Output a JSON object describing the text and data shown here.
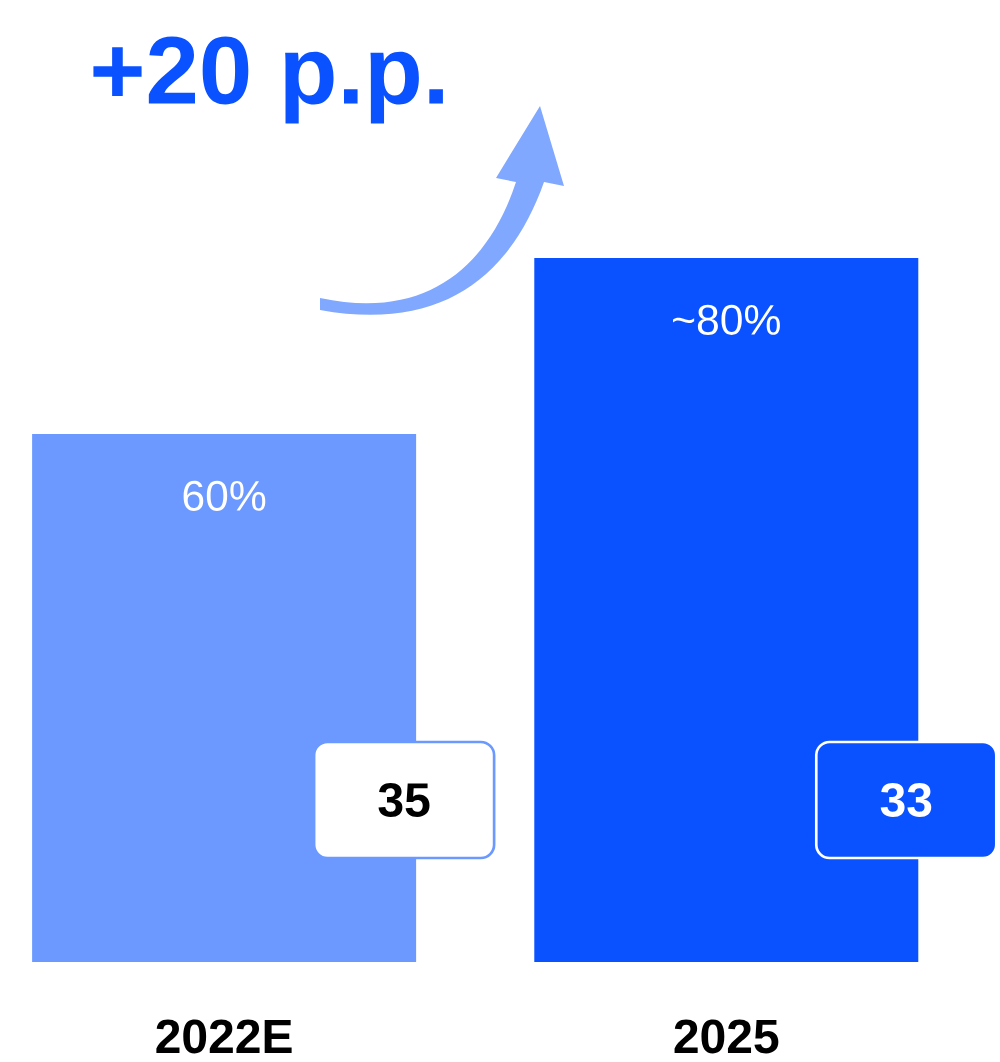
{
  "chart_data": {
    "type": "bar",
    "title": "+20 p.p.",
    "categories": [
      "2022E",
      "2025"
    ],
    "values": [
      60,
      80
    ],
    "colors": [
      "#6b99ff",
      "#0a52ff"
    ],
    "value_labels": [
      "60%",
      "~80%"
    ],
    "annotations": [
      "35",
      "33"
    ]
  }
}
